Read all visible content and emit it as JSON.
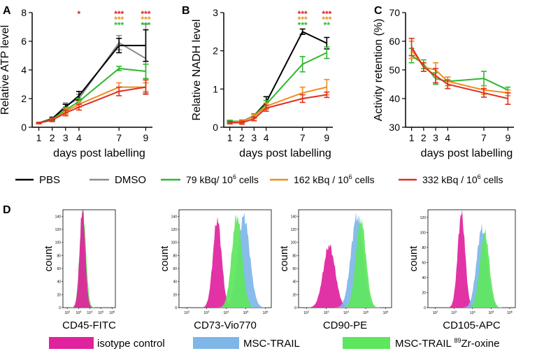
{
  "colors": {
    "pbs": "#000000",
    "dmso": "#8c8c8c",
    "g79": "#2eb82e",
    "g162": "#f08c1e",
    "g332": "#e03020",
    "sig_red": "#d62020",
    "sig_orange": "#f08c1e",
    "sig_green": "#2eb82e",
    "isotype": "#e0229e",
    "msc": "#7eb6e8",
    "msczr": "#5ee65e"
  },
  "legend": {
    "pbs": "PBS",
    "dmso": "DMSO",
    "g79": "79 kBq/ 10",
    "g162": "162 kBq / 10",
    "g332": "332 kBq / 10",
    "sup": "6",
    "cells": "cells"
  },
  "flow_legend": {
    "isotype": "isotype control",
    "msc": "MSC-TRAIL",
    "msczr_pre": "MSC-TRAIL ",
    "msczr_sup": "89",
    "msczr_post": "Zr-oxine"
  },
  "chart_data": [
    {
      "panel": "A",
      "type": "line",
      "ylabel": "Relative  ATP level",
      "xlabel": "days post labelling",
      "x": [
        1,
        2,
        3,
        4,
        7,
        9
      ],
      "x_ticks": [
        "1",
        "2",
        "3",
        "4",
        "7",
        "9"
      ],
      "ylim": [
        0,
        8
      ],
      "y_ticks": [
        "0",
        "2",
        "4",
        "6",
        "8"
      ],
      "series": [
        {
          "key": "dmso",
          "name": "DMSO",
          "values": [
            0.3,
            0.6,
            1.5,
            2.0,
            5.9,
            4.8
          ],
          "err": [
            0.05,
            0.1,
            0.2,
            0.3,
            0.5,
            2.4
          ]
        },
        {
          "key": "pbs",
          "name": "PBS",
          "values": [
            0.3,
            0.6,
            1.4,
            2.2,
            5.7,
            5.7
          ],
          "err": [
            0.05,
            0.1,
            0.2,
            0.3,
            0.5,
            1.1
          ]
        },
        {
          "key": "g79",
          "name": "79 kBq/ 10^6 cells",
          "values": [
            0.3,
            0.55,
            1.2,
            1.8,
            4.1,
            3.9
          ],
          "err": [
            0.05,
            0.1,
            0.2,
            0.2,
            0.15,
            0.5
          ]
        },
        {
          "key": "g162",
          "name": "162 kBq / 10^6 cells",
          "values": [
            0.3,
            0.5,
            1.1,
            1.6,
            2.8,
            2.8
          ],
          "err": [
            0.05,
            0.1,
            0.2,
            0.2,
            0.3,
            0.3
          ]
        },
        {
          "key": "g332",
          "name": "332 kBq / 10^6 cells",
          "values": [
            0.3,
            0.5,
            1.0,
            1.4,
            2.5,
            2.8
          ],
          "err": [
            0.05,
            0.1,
            0.2,
            0.2,
            0.3,
            0.5
          ]
        }
      ],
      "significance": [
        {
          "x": 4,
          "rows": [
            {
              "text": "*",
              "color": "sig_red"
            }
          ]
        },
        {
          "x": 7,
          "rows": [
            {
              "text": "***",
              "color": "sig_red"
            },
            {
              "text": "***",
              "color": "sig_orange"
            },
            {
              "text": "***",
              "color": "sig_green"
            }
          ]
        },
        {
          "x": 9,
          "rows": [
            {
              "text": "***",
              "color": "sig_red"
            },
            {
              "text": "***",
              "color": "sig_orange"
            },
            {
              "text": "***",
              "color": "sig_green"
            }
          ]
        }
      ]
    },
    {
      "panel": "B",
      "type": "line",
      "ylabel": "Relative NADH level",
      "xlabel": "days post labelling",
      "x": [
        1,
        2,
        3,
        4,
        7,
        9
      ],
      "x_ticks": [
        "1",
        "2",
        "3",
        "4",
        "7",
        "9"
      ],
      "ylim": [
        0,
        3
      ],
      "y_ticks": [
        "0",
        "1",
        "2",
        "3"
      ],
      "series": [
        {
          "key": "pbs",
          "name": "PBS",
          "values": [
            0.15,
            0.15,
            0.3,
            0.65,
            2.5,
            2.2
          ],
          "err": [
            0.03,
            0.04,
            0.05,
            0.15,
            0.07,
            0.15
          ]
        },
        {
          "key": "g79",
          "name": "79 kBq/ 10^6 cells",
          "values": [
            0.15,
            0.15,
            0.3,
            0.6,
            1.65,
            1.95
          ],
          "err": [
            0.03,
            0.04,
            0.05,
            0.1,
            0.2,
            0.15
          ]
        },
        {
          "key": "g162",
          "name": "162 kBq / 10^6 cells",
          "values": [
            0.12,
            0.15,
            0.28,
            0.55,
            0.9,
            1.05
          ],
          "err": [
            0.03,
            0.04,
            0.05,
            0.08,
            0.15,
            0.2
          ]
        },
        {
          "key": "g332",
          "name": "332 kBq / 10^6 cells",
          "values": [
            0.12,
            0.12,
            0.22,
            0.5,
            0.75,
            0.85
          ],
          "err": [
            0.03,
            0.04,
            0.05,
            0.08,
            0.1,
            0.07
          ]
        }
      ],
      "significance": [
        {
          "x": 7,
          "rows": [
            {
              "text": "***",
              "color": "sig_red"
            },
            {
              "text": "***",
              "color": "sig_orange"
            },
            {
              "text": "***",
              "color": "sig_green"
            }
          ]
        },
        {
          "x": 9,
          "rows": [
            {
              "text": "***",
              "color": "sig_red"
            },
            {
              "text": "***",
              "color": "sig_orange"
            },
            {
              "text": "**",
              "color": "sig_green"
            }
          ]
        }
      ]
    },
    {
      "panel": "C",
      "type": "line",
      "ylabel": "Activity retention (%)",
      "xlabel": "days post labelling",
      "x": [
        1,
        2,
        3,
        4,
        7,
        9
      ],
      "x_ticks": [
        "1",
        "2",
        "3",
        "4",
        "7",
        "9"
      ],
      "ylim": [
        30,
        70
      ],
      "y_ticks": [
        "30",
        "40",
        "50",
        "60",
        "70"
      ],
      "series": [
        {
          "key": "g79",
          "name": "79 kBq/ 10^6 cells",
          "values": [
            55,
            52,
            47,
            46,
            47,
            43
          ],
          "err": [
            2.5,
            1.5,
            2.0,
            1.5,
            2.5,
            1.0
          ]
        },
        {
          "key": "g162",
          "name": "162 kBq / 10^6 cells",
          "values": [
            57,
            51,
            50,
            46,
            43,
            42
          ],
          "err": [
            3.0,
            1.5,
            2.5,
            1.5,
            1.5,
            1.0
          ]
        },
        {
          "key": "g332",
          "name": "332 kBq / 10^6 cells",
          "values": [
            58,
            51,
            48,
            45,
            42,
            40
          ],
          "err": [
            3.0,
            1.5,
            2.5,
            1.5,
            1.5,
            2.0
          ]
        }
      ]
    },
    {
      "panel": "D",
      "type": "histogram",
      "ylabel": "count",
      "x_ticks": [
        "10",
        "10",
        "10",
        "10",
        "10"
      ],
      "x_exps": [
        "2",
        "3",
        "4",
        "5",
        "6"
      ],
      "plots": [
        {
          "xlabel": "CD45-FITC",
          "y_ticks": [
            "0",
            "20",
            "40",
            "60",
            "80",
            "100",
            "120",
            "140"
          ],
          "ymax": 150,
          "series": [
            {
              "key": "msczr",
              "name": "MSC-TRAIL 89Zr-oxine",
              "center": 3.38,
              "width": 0.28,
              "peak": 150
            },
            {
              "key": "isotype",
              "name": "isotype control",
              "center": 3.35,
              "width": 0.25,
              "peak": 150
            }
          ]
        },
        {
          "xlabel": "CD73-Vio770",
          "y_ticks": [
            "0",
            "20",
            "40",
            "60",
            "80",
            "100",
            "120",
            "140"
          ],
          "ymax": 150,
          "series": [
            {
              "key": "isotype",
              "name": "isotype control",
              "center": 3.55,
              "width": 0.22,
              "peak": 135
            },
            {
              "key": "msc",
              "name": "MSC-TRAIL",
              "center": 4.9,
              "width": 0.3,
              "peak": 140
            },
            {
              "key": "msczr",
              "name": "MSC-TRAIL 89Zr-oxine",
              "center": 4.55,
              "width": 0.26,
              "peak": 140
            }
          ]
        },
        {
          "xlabel": "CD90-PE",
          "y_ticks": [
            "0",
            "20",
            "40",
            "60",
            "80",
            "100",
            "120",
            "140"
          ],
          "ymax": 150,
          "series": [
            {
              "key": "isotype",
              "name": "isotype control",
              "center": 3.15,
              "width": 0.3,
              "peak": 95
            },
            {
              "key": "msc",
              "name": "MSC-TRAIL",
              "center": 4.55,
              "width": 0.3,
              "peak": 140
            },
            {
              "key": "msczr",
              "name": "MSC-TRAIL 89Zr-oxine",
              "center": 4.75,
              "width": 0.25,
              "peak": 135
            }
          ]
        },
        {
          "xlabel": "CD105-APC",
          "y_ticks": [
            "0",
            "20",
            "40",
            "60",
            "80",
            "100",
            "120"
          ],
          "ymax": 130,
          "series": [
            {
              "key": "isotype",
              "name": "isotype control",
              "center": 3.4,
              "width": 0.2,
              "peak": 125
            },
            {
              "key": "msc",
              "name": "MSC-TRAIL",
              "center": 4.5,
              "width": 0.28,
              "peak": 105
            },
            {
              "key": "msczr",
              "name": "MSC-TRAIL 89Zr-oxine",
              "center": 4.65,
              "width": 0.25,
              "peak": 100
            }
          ]
        }
      ]
    }
  ]
}
